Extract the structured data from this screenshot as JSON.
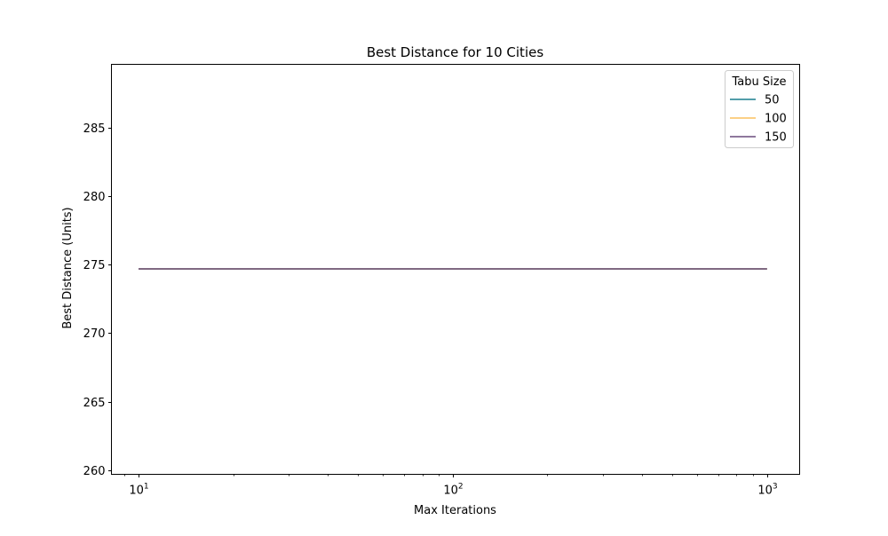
{
  "chart_data": {
    "type": "line",
    "title": "Best Distance for 10 Cities",
    "xlabel": "Max Iterations",
    "ylabel": "Best Distance (Units)",
    "xscale": "log",
    "xlim": [
      8.2,
      1270
    ],
    "ylim": [
      259.7,
      289.6
    ],
    "x": [
      10,
      100,
      1000
    ],
    "x_ticks": [
      {
        "value": 10,
        "base": "10",
        "exp": "1"
      },
      {
        "value": 100,
        "base": "10",
        "exp": "2"
      },
      {
        "value": 1000,
        "base": "10",
        "exp": "3"
      }
    ],
    "y_ticks": [
      260,
      265,
      270,
      275,
      280,
      285
    ],
    "grid": false,
    "legend": {
      "title": "Tabu Size",
      "placement": "top-right"
    },
    "series": [
      {
        "name": "50",
        "color": "#1a7f8e",
        "values": [
          274.68,
          274.68,
          274.68
        ]
      },
      {
        "name": "100",
        "color": "#fbc15e",
        "values": [
          274.68,
          274.68,
          274.68
        ]
      },
      {
        "name": "150",
        "color": "#6a4c7d",
        "values": [
          274.68,
          274.68,
          274.68
        ]
      }
    ]
  }
}
